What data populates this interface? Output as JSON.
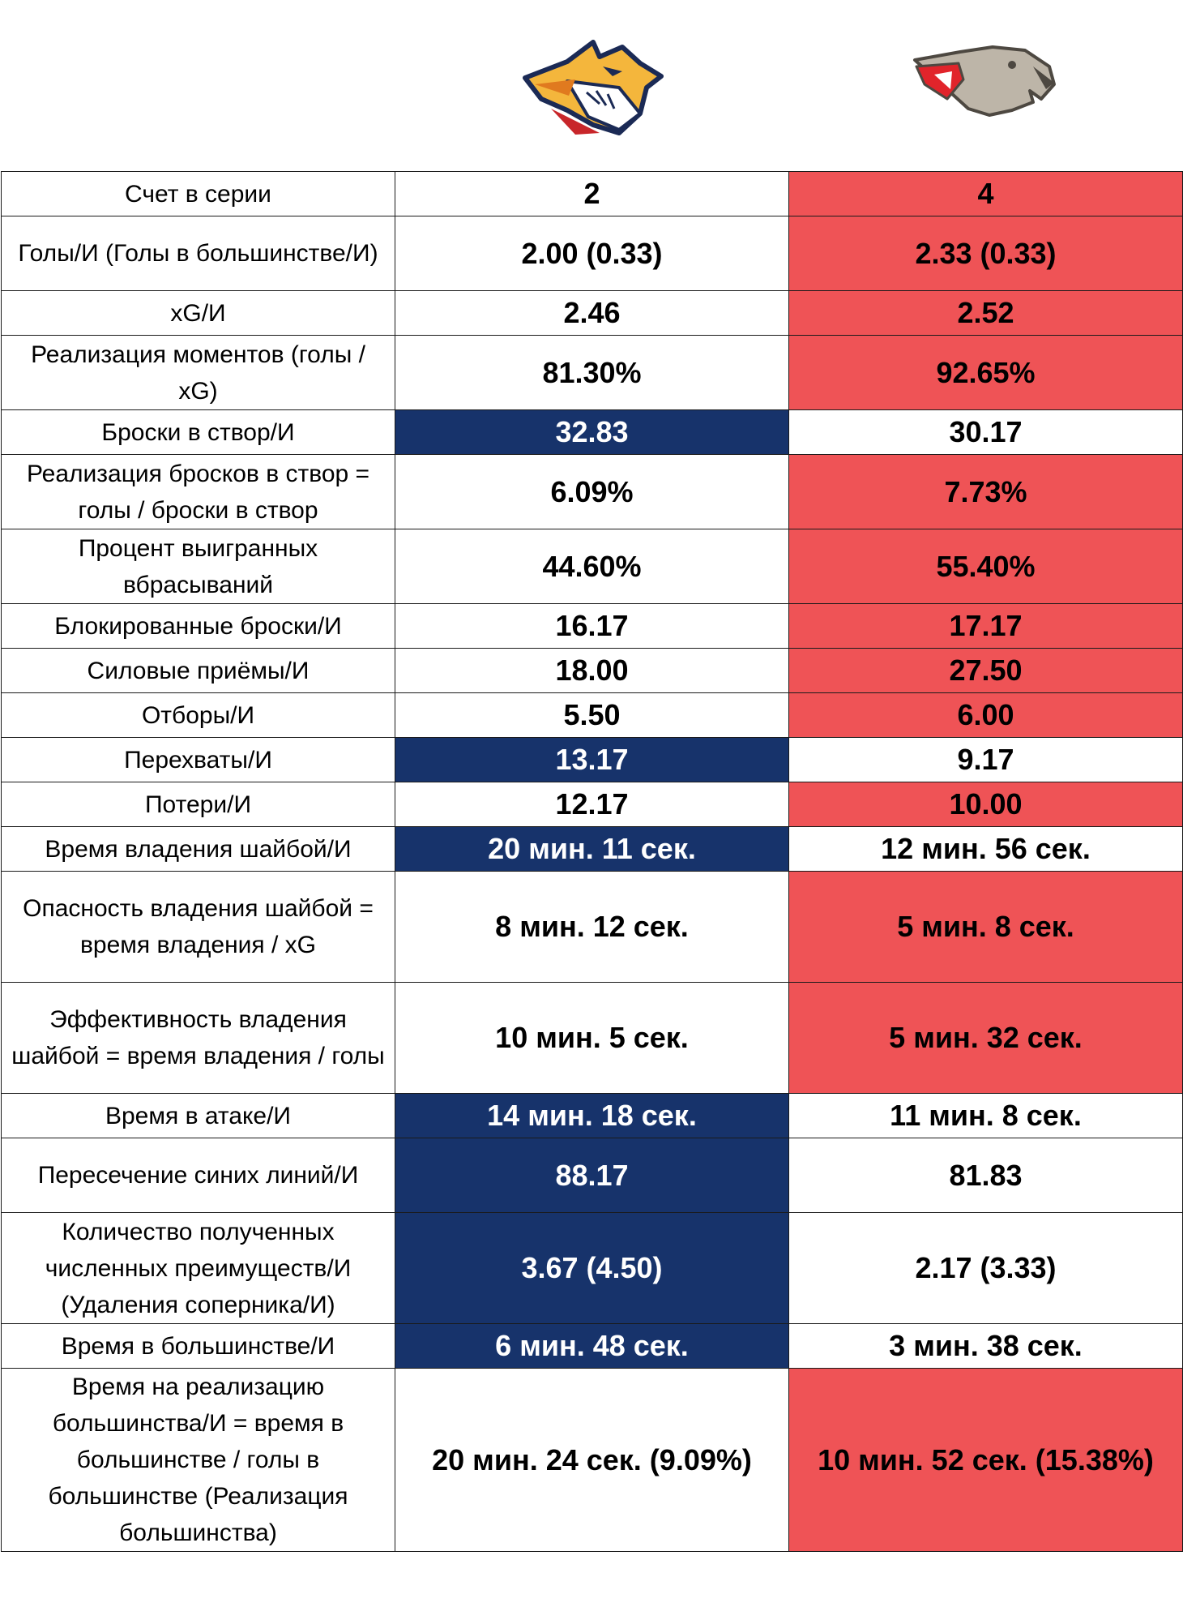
{
  "teams": [
    {
      "logo": "metallurg-fox-logo"
    },
    {
      "logo": "avangard-hawk-logo"
    }
  ],
  "colors": {
    "blue": "#17336b",
    "red": "#ef5356",
    "white": "#ffffff"
  },
  "rows": [
    {
      "label": "Счет в серии",
      "left": "2",
      "right": "4",
      "left_state": "white",
      "right_state": "red"
    },
    {
      "label": "Голы/И (Голы в большинстве/И)",
      "left": "2.00 (0.33)",
      "right": "2.33 (0.33)",
      "left_state": "white",
      "right_state": "red"
    },
    {
      "label": "xG/И",
      "left": "2.46",
      "right": "2.52",
      "left_state": "white",
      "right_state": "red"
    },
    {
      "label": "Реализация моментов (голы / xG)",
      "left": "81.30%",
      "right": "92.65%",
      "left_state": "white",
      "right_state": "red"
    },
    {
      "label": "Броски в створ/И",
      "left": "32.83",
      "right": "30.17",
      "left_state": "blue",
      "right_state": "white"
    },
    {
      "label": "Реализация бросков в створ = голы / броски в створ",
      "left": "6.09%",
      "right": "7.73%",
      "left_state": "white",
      "right_state": "red"
    },
    {
      "label": "Процент выигранных вбрасываний",
      "left": "44.60%",
      "right": "55.40%",
      "left_state": "white",
      "right_state": "red"
    },
    {
      "label": "Блокированные броски/И",
      "left": "16.17",
      "right": "17.17",
      "left_state": "white",
      "right_state": "red"
    },
    {
      "label": "Силовые приёмы/И",
      "left": "18.00",
      "right": "27.50",
      "left_state": "white",
      "right_state": "red"
    },
    {
      "label": "Отборы/И",
      "left": "5.50",
      "right": "6.00",
      "left_state": "white",
      "right_state": "red"
    },
    {
      "label": "Перехваты/И",
      "left": "13.17",
      "right": "9.17",
      "left_state": "blue",
      "right_state": "white"
    },
    {
      "label": "Потери/И",
      "left": "12.17",
      "right": "10.00",
      "left_state": "white",
      "right_state": "red"
    },
    {
      "label": "Время владения шайбой/И",
      "left": "20 мин. 11 сек.",
      "right": "12 мин. 56 сек.",
      "left_state": "blue",
      "right_state": "white"
    },
    {
      "label": "Опасность владения шайбой = время владения / xG",
      "left": "8 мин. 12 сек.",
      "right": "5 мин. 8 сек.",
      "left_state": "white",
      "right_state": "red"
    },
    {
      "label": "Эффективность владения шайбой = время владения / голы",
      "left": "10 мин. 5 сек.",
      "right": "5 мин. 32 сек.",
      "left_state": "white",
      "right_state": "red"
    },
    {
      "label": "Время в атаке/И",
      "left": "14 мин. 18 сек.",
      "right": "11 мин. 8 сек.",
      "left_state": "blue",
      "right_state": "white"
    },
    {
      "label": "Пересечение синих линий/И",
      "left": "88.17",
      "right": "81.83",
      "left_state": "blue",
      "right_state": "white"
    },
    {
      "label": "Количество полученных численных преимуществ/И (Удаления соперника/И)",
      "left": "3.67 (4.50)",
      "right": "2.17 (3.33)",
      "left_state": "blue",
      "right_state": "white"
    },
    {
      "label": "Время в большинстве/И",
      "left": "6 мин. 48 сек.",
      "right": "3 мин. 38 сек.",
      "left_state": "blue",
      "right_state": "white"
    },
    {
      "label": "Время на реализацию большинства/И = время в большинстве / голы в большинстве (Реализация большинства)",
      "left": "20 мин. 24 сек. (9.09%)",
      "right": "10 мин. 52 сек. (15.38%)",
      "left_state": "white",
      "right_state": "red"
    }
  ]
}
